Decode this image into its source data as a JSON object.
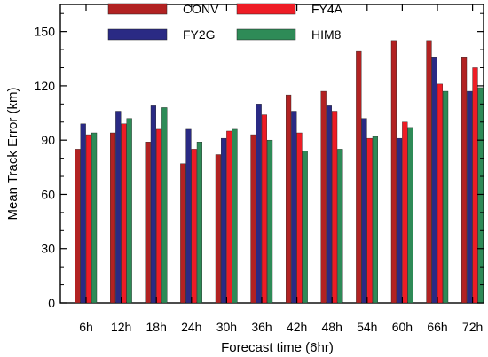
{
  "chart_data": {
    "type": "bar",
    "title": "",
    "xlabel": "Forecast time (6hr)",
    "ylabel": "Mean Track Error (km)",
    "ylim": [
      0,
      165
    ],
    "yticks": [
      0,
      30,
      60,
      90,
      120,
      150
    ],
    "grid": false,
    "legend_position": "top-left, inside plot",
    "categories": [
      "6h",
      "12h",
      "18h",
      "24h",
      "30h",
      "36h",
      "42h",
      "48h",
      "54h",
      "60h",
      "66h",
      "72h"
    ],
    "series": [
      {
        "name": "CONV",
        "color": "#b22222",
        "values": [
          85,
          94,
          89,
          77,
          82,
          93,
          115,
          117,
          139,
          145,
          145,
          136
        ]
      },
      {
        "name": "FY2G",
        "color": "#2a2a84",
        "values": [
          99,
          106,
          109,
          96,
          91,
          110,
          106,
          109,
          102,
          91,
          136,
          117
        ]
      },
      {
        "name": "FY4A",
        "color": "#ee1c25",
        "values": [
          93,
          99,
          96,
          85,
          95,
          104,
          94,
          106,
          91,
          100,
          121,
          130
        ]
      },
      {
        "name": "HIM8",
        "color": "#2e8b57",
        "values": [
          94,
          102,
          108,
          89,
          96,
          90,
          84,
          85,
          92,
          97,
          117,
          119
        ]
      }
    ],
    "legend_order": [
      "CONV",
      "FY4A",
      "FY2G",
      "HIM8"
    ]
  }
}
